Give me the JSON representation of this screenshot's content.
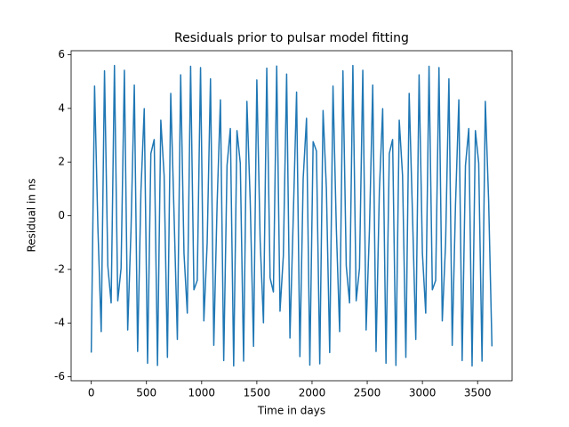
{
  "chart_data": {
    "type": "line",
    "title": "Residuals prior to pulsar model fitting",
    "x_label": "Time in days",
    "y_label": "Residual in ns",
    "x": [
      0,
      30,
      60,
      90,
      120,
      150,
      180,
      210,
      240,
      270,
      300,
      330,
      360,
      390,
      420,
      450,
      480,
      510,
      540,
      570,
      600,
      630,
      660,
      690,
      720,
      750,
      780,
      810,
      840,
      870,
      900,
      930,
      960,
      990,
      1020,
      1050,
      1080,
      1110,
      1140,
      1170,
      1200,
      1230,
      1260,
      1290,
      1320,
      1350,
      1380,
      1410,
      1440,
      1470,
      1500,
      1530,
      1560,
      1590,
      1620,
      1650,
      1680,
      1710,
      1740,
      1770,
      1800,
      1830,
      1860,
      1890,
      1920,
      1950,
      1980,
      2010,
      2040,
      2070,
      2100,
      2130,
      2160,
      2190,
      2220,
      2250,
      2280,
      2310,
      2340,
      2370,
      2400,
      2430,
      2460,
      2490,
      2520,
      2550,
      2580,
      2610,
      2640,
      2670,
      2700,
      2730,
      2760,
      2790,
      2820,
      2850,
      2880,
      2910,
      2940,
      2970,
      3000,
      3030,
      3060,
      3090,
      3120,
      3150,
      3180,
      3210,
      3240,
      3270,
      3300,
      3330,
      3360,
      3390,
      3420,
      3450,
      3480,
      3510,
      3540,
      3570,
      3600,
      3630
    ],
    "series": [
      {
        "name": "Residuals",
        "color": "#1f77b4",
        "values": [
          -5.1,
          4.83,
          -0.44,
          -4.32,
          5.4,
          -1.87,
          -3.25,
          5.6,
          -3.17,
          -1.96,
          5.42,
          -4.26,
          -0.54,
          4.87,
          -5.06,
          0.92,
          3.99,
          -5.5,
          2.32,
          2.84,
          -5.58,
          3.56,
          1.5,
          -5.28,
          4.56,
          0.05,
          -4.61,
          5.25,
          -1.4,
          -3.63,
          5.57,
          -2.76,
          -2.41,
          5.52,
          -3.92,
          -1.02,
          5.1,
          -4.83,
          0.44,
          4.32,
          -5.4,
          1.87,
          3.25,
          -5.6,
          3.17,
          1.96,
          -5.42,
          4.26,
          0.54,
          -4.87,
          5.06,
          -0.92,
          -3.99,
          5.5,
          -2.32,
          -2.84,
          5.58,
          -3.56,
          -1.5,
          5.28,
          -4.56,
          -0.05,
          4.61,
          -5.25,
          1.4,
          3.63,
          -5.57,
          2.76,
          2.41,
          -5.52,
          3.92,
          1.02,
          -5.1,
          4.83,
          -0.44,
          -4.32,
          5.4,
          -1.87,
          -3.25,
          5.6,
          -3.17,
          -1.96,
          5.42,
          -4.26,
          -0.54,
          4.87,
          -5.06,
          0.92,
          3.99,
          -5.5,
          2.32,
          2.84,
          -5.58,
          3.56,
          1.5,
          -5.28,
          4.56,
          0.05,
          -4.61,
          5.25,
          -1.4,
          -3.63,
          5.57,
          -2.76,
          -2.41,
          5.52,
          -3.92,
          -1.02,
          5.1,
          -4.83,
          0.44,
          4.32,
          -5.4,
          1.87,
          3.25,
          -5.6,
          3.17,
          1.96,
          -5.42,
          4.26,
          0.54,
          -4.87
        ]
      }
    ],
    "xlim": [
      -182.5,
      3812.5
    ],
    "xticks": [
      0,
      500,
      1000,
      1500,
      2000,
      2500,
      3000,
      3500
    ],
    "ylim": [
      -6.15,
      6.15
    ],
    "yticks": [
      -6,
      -4,
      -2,
      0,
      2,
      4,
      6
    ]
  }
}
